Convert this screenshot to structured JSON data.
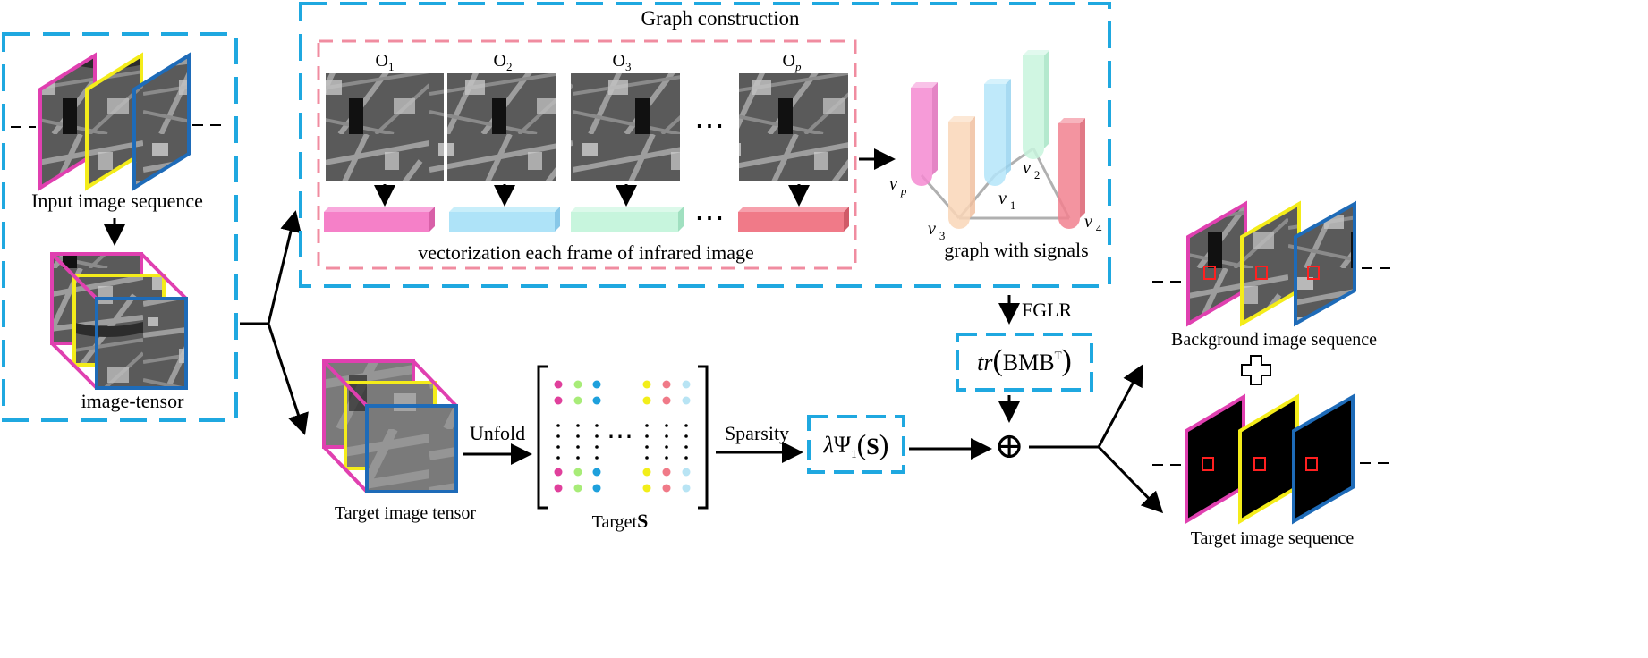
{
  "labels": {
    "graph_construction": "Graph construction",
    "input_sequence": "Input image sequence",
    "image_tensor": "image-tensor",
    "frame_labels": [
      {
        "base": "O",
        "sub": "1"
      },
      {
        "base": "O",
        "sub": "2"
      },
      {
        "base": "O",
        "sub": "3"
      },
      {
        "base": "O",
        "sub": "p"
      }
    ],
    "vectorization": "vectorization each frame of infrared image",
    "graph_with_signals": "graph with signals",
    "nodes": [
      {
        "base": "v",
        "sub": "p"
      },
      {
        "base": "v",
        "sub": "1"
      },
      {
        "base": "v",
        "sub": "2"
      },
      {
        "base": "v",
        "sub": "3"
      },
      {
        "base": "v",
        "sub": "4"
      }
    ],
    "fglr": "FGLR",
    "trace_term": {
      "tr": "tr",
      "inner": "BMB",
      "sup": "T"
    },
    "target_tensor": "Target image tensor",
    "unfold": "Unfold",
    "target_s": {
      "prefix": "Target",
      "bold": "S"
    },
    "sparsity": "Sparsity",
    "sparsity_term": {
      "lambda": "λ",
      "psi": "Ψ",
      "sub": "1",
      "arg": "S"
    },
    "oplus": "⊕",
    "background_sequence": "Background image sequence",
    "target_sequence": "Target image sequence",
    "ellipsis": "⋯",
    "vdots": "⋮"
  },
  "colors": {
    "dashed_blue": "#1fa8e0",
    "dashed_pink": "#f08ca0",
    "magenta": "#e040b0",
    "yellow": "#f4ec1a",
    "blue": "#1e6bb8",
    "vec_pink": "#f580c8",
    "vec_blue": "#aee3f8",
    "vec_green": "#c7f5dd",
    "vec_red": "#f07a88",
    "dot_magenta": "#e0409c",
    "dot_green": "#a8ec78",
    "dot_blue": "#1ea0dc",
    "dot_yellow": "#f2ee1a",
    "dot_red": "#f07a88",
    "dot_lightblue": "#b8e4f4"
  }
}
